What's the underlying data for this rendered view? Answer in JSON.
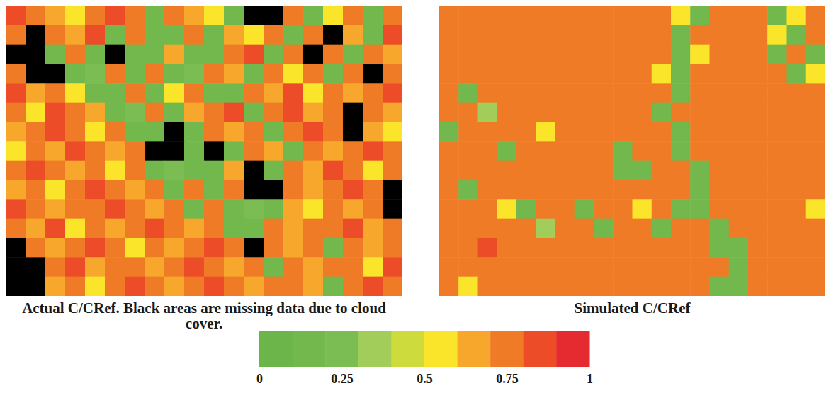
{
  "chart_data": {
    "type": "heatmap",
    "panels": [
      {
        "title": "Actual C/CRef. Black areas are missing data due to cloud cover.",
        "cells": [
          [
            0.85,
            0.75,
            0.65,
            0.55,
            0.75,
            0.85,
            0.75,
            0.15,
            0.75,
            0.65,
            0.55,
            0.15,
            null,
            null,
            0.75,
            0.15,
            0.55,
            0.75,
            0.15,
            0.75
          ],
          [
            0.75,
            null,
            0.75,
            0.65,
            0.85,
            0.15,
            0.75,
            0.15,
            0.15,
            0.75,
            0.15,
            0.65,
            0.55,
            0.75,
            0.15,
            0.75,
            null,
            0.65,
            0.15,
            0.85
          ],
          [
            null,
            null,
            0.15,
            0.75,
            0.15,
            null,
            0.15,
            0.15,
            0.65,
            0.15,
            0.15,
            0.75,
            0.85,
            0.15,
            0.75,
            null,
            0.75,
            0.15,
            0.75,
            0.65
          ],
          [
            0.75,
            null,
            null,
            0.15,
            0.25,
            0.75,
            0.15,
            0.75,
            0.15,
            0.25,
            0.75,
            0.65,
            0.15,
            0.75,
            0.55,
            0.75,
            0.15,
            0.75,
            null,
            0.75
          ],
          [
            0.85,
            0.65,
            0.75,
            0.55,
            0.15,
            0.15,
            0.75,
            0.15,
            0.55,
            0.75,
            0.15,
            0.15,
            0.75,
            0.65,
            0.85,
            0.55,
            0.75,
            0.65,
            0.75,
            0.85
          ],
          [
            0.75,
            0.55,
            0.85,
            0.75,
            0.65,
            0.15,
            0.25,
            0.75,
            0.15,
            0.65,
            0.75,
            0.85,
            0.15,
            0.75,
            0.85,
            0.65,
            0.75,
            null,
            0.75,
            0.65
          ],
          [
            0.65,
            0.75,
            0.85,
            0.75,
            0.55,
            0.75,
            0.15,
            0.15,
            null,
            0.15,
            0.75,
            0.65,
            0.75,
            0.15,
            0.75,
            0.85,
            0.75,
            null,
            0.65,
            0.55
          ],
          [
            0.55,
            0.75,
            0.65,
            0.85,
            0.75,
            0.65,
            0.75,
            null,
            null,
            0.15,
            null,
            0.15,
            0.75,
            0.65,
            0.15,
            0.75,
            0.65,
            0.75,
            0.85,
            0.75
          ],
          [
            0.75,
            0.85,
            0.75,
            0.65,
            0.75,
            0.55,
            0.75,
            0.15,
            0.25,
            0.15,
            0.15,
            0.65,
            null,
            0.15,
            0.75,
            0.65,
            0.85,
            0.75,
            0.55,
            0.75
          ],
          [
            0.65,
            0.75,
            0.55,
            0.75,
            0.85,
            0.75,
            0.65,
            0.75,
            0.15,
            0.75,
            0.15,
            0.75,
            null,
            null,
            0.75,
            0.65,
            0.75,
            0.85,
            0.75,
            null
          ],
          [
            0.85,
            0.75,
            0.65,
            0.75,
            0.75,
            0.85,
            0.75,
            0.65,
            0.75,
            0.15,
            0.75,
            0.15,
            0.25,
            0.15,
            0.65,
            0.55,
            0.75,
            0.65,
            0.75,
            null
          ],
          [
            0.75,
            0.65,
            0.85,
            0.55,
            0.75,
            0.65,
            0.75,
            0.85,
            0.75,
            0.65,
            0.75,
            0.15,
            0.15,
            0.75,
            0.65,
            0.75,
            0.75,
            0.85,
            0.65,
            0.75
          ],
          [
            null,
            0.75,
            0.65,
            0.75,
            0.85,
            0.75,
            0.55,
            0.75,
            0.65,
            0.75,
            0.85,
            0.75,
            null,
            0.75,
            0.65,
            0.75,
            0.15,
            0.75,
            0.65,
            0.75
          ],
          [
            null,
            null,
            0.75,
            0.85,
            0.65,
            0.75,
            0.75,
            0.65,
            0.75,
            0.85,
            0.75,
            0.65,
            0.75,
            0.15,
            0.75,
            0.65,
            0.75,
            0.75,
            0.55,
            0.85
          ],
          [
            null,
            null,
            0.65,
            0.75,
            0.55,
            0.75,
            0.85,
            0.75,
            0.65,
            0.75,
            0.85,
            0.75,
            0.65,
            0.75,
            0.75,
            0.65,
            0.15,
            0.75,
            0.85,
            0.75
          ]
        ]
      },
      {
        "title": "Simulated C/CRef",
        "cells": [
          [
            0.75,
            0.75,
            0.75,
            0.75,
            0.75,
            0.75,
            0.75,
            0.75,
            0.75,
            0.75,
            0.75,
            0.75,
            0.55,
            0.15,
            0.75,
            0.75,
            0.75,
            0.15,
            0.55,
            0.75
          ],
          [
            0.75,
            0.75,
            0.75,
            0.75,
            0.75,
            0.75,
            0.75,
            0.75,
            0.75,
            0.75,
            0.75,
            0.75,
            0.15,
            0.75,
            0.75,
            0.75,
            0.75,
            0.55,
            0.15,
            0.75
          ],
          [
            0.75,
            0.75,
            0.75,
            0.75,
            0.75,
            0.75,
            0.75,
            0.75,
            0.75,
            0.75,
            0.75,
            0.75,
            0.15,
            0.55,
            0.75,
            0.75,
            0.75,
            0.15,
            0.75,
            0.15
          ],
          [
            0.75,
            0.75,
            0.75,
            0.75,
            0.75,
            0.75,
            0.75,
            0.75,
            0.75,
            0.75,
            0.75,
            0.55,
            0.15,
            0.75,
            0.75,
            0.75,
            0.75,
            0.75,
            0.15,
            0.55
          ],
          [
            0.75,
            0.15,
            0.75,
            0.75,
            0.75,
            0.75,
            0.75,
            0.75,
            0.75,
            0.75,
            0.75,
            0.75,
            0.15,
            0.75,
            0.75,
            0.75,
            0.75,
            0.75,
            0.75,
            0.75
          ],
          [
            0.75,
            0.75,
            0.35,
            0.75,
            0.75,
            0.75,
            0.75,
            0.75,
            0.75,
            0.75,
            0.75,
            0.15,
            0.75,
            0.75,
            0.75,
            0.75,
            0.75,
            0.75,
            0.75,
            0.75
          ],
          [
            0.15,
            0.75,
            0.75,
            0.75,
            0.75,
            0.55,
            0.75,
            0.75,
            0.75,
            0.75,
            0.75,
            0.75,
            0.15,
            0.75,
            0.75,
            0.75,
            0.75,
            0.75,
            0.75,
            0.75
          ],
          [
            0.75,
            0.75,
            0.75,
            0.15,
            0.75,
            0.75,
            0.75,
            0.75,
            0.75,
            0.15,
            0.75,
            0.75,
            0.15,
            0.75,
            0.75,
            0.75,
            0.75,
            0.75,
            0.75,
            0.75
          ],
          [
            0.75,
            0.75,
            0.75,
            0.75,
            0.75,
            0.75,
            0.75,
            0.75,
            0.75,
            0.15,
            0.15,
            0.75,
            0.75,
            0.15,
            0.75,
            0.75,
            0.75,
            0.75,
            0.75,
            0.75
          ],
          [
            0.75,
            0.15,
            0.75,
            0.75,
            0.75,
            0.75,
            0.75,
            0.75,
            0.75,
            0.75,
            0.75,
            0.75,
            0.75,
            0.15,
            0.75,
            0.75,
            0.75,
            0.75,
            0.75,
            0.75
          ],
          [
            0.75,
            0.75,
            0.75,
            0.55,
            0.15,
            0.75,
            0.75,
            0.15,
            0.75,
            0.75,
            0.55,
            0.75,
            0.15,
            0.15,
            0.75,
            0.75,
            0.75,
            0.75,
            0.75,
            0.55
          ],
          [
            0.75,
            0.75,
            0.75,
            0.75,
            0.75,
            0.35,
            0.75,
            0.75,
            0.15,
            0.75,
            0.75,
            0.15,
            0.75,
            0.75,
            0.15,
            0.75,
            0.75,
            0.75,
            0.75,
            0.75
          ],
          [
            0.75,
            0.75,
            0.85,
            0.75,
            0.75,
            0.75,
            0.75,
            0.75,
            0.75,
            0.75,
            0.75,
            0.75,
            0.75,
            0.75,
            0.15,
            0.15,
            0.75,
            0.75,
            0.75,
            0.75
          ],
          [
            0.75,
            0.75,
            0.75,
            0.75,
            0.75,
            0.75,
            0.75,
            0.75,
            0.75,
            0.75,
            0.75,
            0.75,
            0.75,
            0.75,
            0.75,
            0.15,
            0.75,
            0.75,
            0.75,
            0.75
          ],
          [
            0.75,
            0.55,
            0.75,
            0.75,
            0.75,
            0.75,
            0.75,
            0.75,
            0.75,
            0.75,
            0.75,
            0.75,
            0.75,
            0.75,
            0.15,
            0.15,
            0.75,
            0.75,
            0.75,
            0.75
          ]
        ]
      }
    ],
    "colorbar": {
      "range": [
        0,
        1
      ],
      "ticks": [
        0,
        0.25,
        0.5,
        0.75,
        1
      ],
      "colors": [
        "#6cb54a",
        "#72b84c",
        "#7bbd52",
        "#a2cd5a",
        "#cddc3c",
        "#fbe52a",
        "#f6a72c",
        "#f07b26",
        "#ec4c28",
        "#e52a30"
      ]
    }
  }
}
